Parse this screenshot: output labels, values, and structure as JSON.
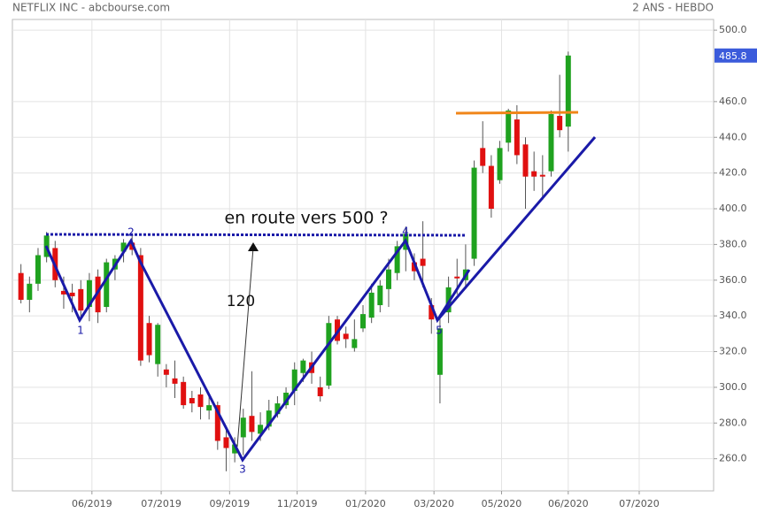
{
  "chart_data": {
    "type": "candlestick",
    "title": "NETFLIX INC - abcbourse.com",
    "subtitle": "2 ANS - HEBDO",
    "colors": {
      "up": "#1fa21f",
      "down": "#e01010",
      "wick": "#555555",
      "last": "#3b5bdb"
    },
    "grid": true,
    "xlim": [
      -1,
      81
    ],
    "ylim": [
      242,
      506
    ],
    "xticks": [
      {
        "value": 8.3,
        "label": "06/2019"
      },
      {
        "value": 16.4,
        "label": "07/2019"
      },
      {
        "value": 24.4,
        "label": "09/2019"
      },
      {
        "value": 32.3,
        "label": "11/2019"
      },
      {
        "value": 40.3,
        "label": "01/2020"
      },
      {
        "value": 48.3,
        "label": "03/2020"
      },
      {
        "value": 56.2,
        "label": "05/2020"
      },
      {
        "value": 64,
        "label": "06/2020"
      },
      {
        "value": 72.3,
        "label": "07/2020"
      }
    ],
    "yticks": [
      {
        "value": 260,
        "label": "260.0"
      },
      {
        "value": 280,
        "label": "280.0"
      },
      {
        "value": 300,
        "label": "300.0"
      },
      {
        "value": 320,
        "label": "320.0"
      },
      {
        "value": 340,
        "label": "340.0"
      },
      {
        "value": 360,
        "label": "360.0"
      },
      {
        "value": 380,
        "label": "380.0"
      },
      {
        "value": 400,
        "label": "400.0"
      },
      {
        "value": 420,
        "label": "420.0"
      },
      {
        "value": 440,
        "label": "440.0"
      },
      {
        "value": 460,
        "label": "460.0"
      },
      {
        "value": 500,
        "label": "500.0"
      }
    ],
    "x": [
      0,
      1,
      2,
      3,
      4,
      5,
      6,
      7,
      8,
      9,
      10,
      11,
      12,
      13,
      14,
      15,
      16,
      17,
      18,
      19,
      20,
      21,
      22,
      23,
      24,
      25,
      26,
      27,
      28,
      29,
      30,
      31,
      32,
      33,
      34,
      35,
      36,
      37,
      38,
      39,
      40,
      41,
      42,
      43,
      44,
      45,
      46,
      47,
      48,
      49,
      50,
      51,
      52,
      53,
      54,
      55,
      56,
      57,
      58,
      59,
      60,
      61,
      62,
      63,
      64
    ],
    "open": [
      364,
      349,
      358,
      373,
      378,
      354,
      353,
      355,
      345,
      362,
      345,
      366,
      376,
      381,
      374,
      336,
      313,
      310,
      305,
      303,
      294,
      296,
      287,
      290,
      272,
      263,
      272,
      284,
      274,
      278,
      285,
      290,
      298,
      308,
      314,
      300,
      301,
      338,
      330,
      322,
      333,
      339,
      346,
      355,
      364,
      377,
      370,
      372,
      346,
      307,
      342,
      362,
      360,
      372,
      434,
      424,
      416,
      437,
      450,
      436,
      421,
      419,
      421,
      452,
      446
    ],
    "high": [
      369,
      362,
      378,
      387,
      382,
      362,
      358,
      360,
      364,
      366,
      372,
      374,
      383,
      386,
      378,
      340,
      336,
      313,
      315,
      306,
      298,
      300,
      295,
      292,
      276,
      272,
      288,
      309,
      286,
      293,
      295,
      300,
      314,
      316,
      320,
      306,
      340,
      340,
      334,
      338,
      346,
      358,
      360,
      372,
      382,
      390,
      375,
      393,
      350,
      340,
      362,
      372,
      380,
      427,
      449,
      430,
      438,
      456,
      458,
      440,
      432,
      430,
      455,
      475,
      488
    ],
    "low": [
      347,
      342,
      354,
      370,
      356,
      344,
      342,
      338,
      337,
      336,
      342,
      360,
      370,
      374,
      312,
      314,
      306,
      300,
      294,
      288,
      286,
      282,
      282,
      265,
      253,
      258,
      262,
      270,
      270,
      276,
      283,
      288,
      290,
      303,
      302,
      292,
      299,
      324,
      322,
      320,
      331,
      336,
      342,
      345,
      360,
      365,
      360,
      356,
      330,
      291,
      336,
      352,
      355,
      368,
      420,
      395,
      414,
      432,
      425,
      400,
      410,
      405,
      418,
      440,
      432
    ],
    "close": [
      349,
      358,
      374,
      385,
      360,
      352,
      351,
      343,
      360,
      342,
      370,
      372,
      381,
      377,
      315,
      318,
      335,
      307,
      302,
      290,
      291,
      289,
      290,
      270,
      266,
      268,
      283,
      275,
      279,
      287,
      291,
      297,
      310,
      315,
      308,
      295,
      336,
      326,
      327,
      327,
      341,
      353,
      357,
      366,
      379,
      386,
      365,
      368,
      338,
      333,
      356,
      361,
      366,
      423,
      424,
      400,
      434,
      455,
      430,
      418,
      418,
      418,
      453,
      444,
      485.8
    ],
    "annotations": [
      "en route vers 500 ?",
      "120",
      "1",
      "2",
      "3",
      "4",
      "5"
    ]
  }
}
